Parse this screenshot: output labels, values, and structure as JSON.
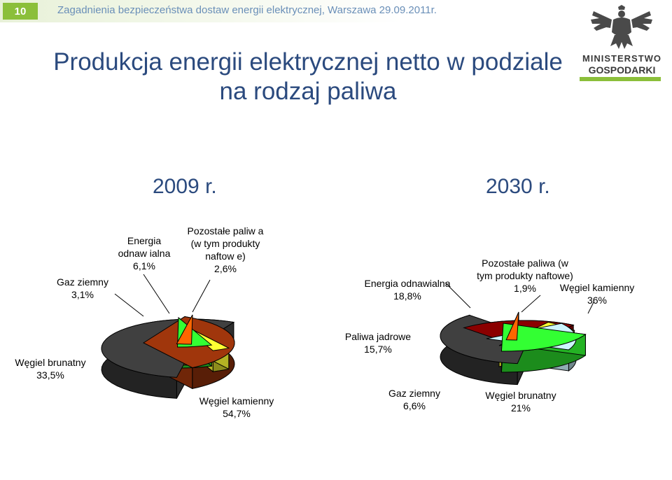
{
  "header": {
    "page_number": "10",
    "text": "Zagadnienia bezpieczeństwa dostaw energii elektrycznej, Warszawa 29.09.2011r.",
    "accent": "#8bbf3a",
    "text_color": "#6a8fb8"
  },
  "title": {
    "line1": "Produkcja energii elektrycznej netto w podziale",
    "line2": "na rodzaj paliwa"
  },
  "logo": {
    "line1": "MINISTERSTWO",
    "line2": "GOSPODARKI",
    "emblem": "eagle-emblem-icon"
  },
  "chart_data": [
    {
      "type": "pie",
      "title": "2009 r.",
      "slices": [
        {
          "name_lines": [
            "Węgiel kamienny"
          ],
          "pct": "54,7%",
          "value": 54.7,
          "color": "#404040"
        },
        {
          "name_lines": [
            "Węgiel brunatny"
          ],
          "pct": "33,5%",
          "value": 33.5,
          "color": "#a0360c"
        },
        {
          "name_lines": [
            "Gaz ziemny"
          ],
          "pct": "3,1%",
          "value": 3.1,
          "color": "#ffff33"
        },
        {
          "name_lines": [
            "Energia",
            "odnaw ialna"
          ],
          "pct": "6,1%",
          "value": 6.1,
          "color": "#33ff33"
        },
        {
          "name_lines": [
            "Pozostałe paliw a",
            "(w  tym produkty",
            "naftow e)"
          ],
          "pct": "2,6%",
          "value": 2.6,
          "color": "#ff6600"
        }
      ]
    },
    {
      "type": "pie",
      "title": "2030 r.",
      "slices": [
        {
          "name_lines": [
            "Węgiel kamienny"
          ],
          "pct": "36%",
          "value": 36,
          "color": "#404040"
        },
        {
          "name_lines": [
            "Węgiel brunatny"
          ],
          "pct": "21%",
          "value": 21,
          "color": "#8b0000"
        },
        {
          "name_lines": [
            "Gaz ziemny"
          ],
          "pct": "6,6%",
          "value": 6.6,
          "color": "#ffff33"
        },
        {
          "name_lines": [
            "Paliwa jadrowe"
          ],
          "pct": "15,7%",
          "value": 15.7,
          "color": "#ccf5ff"
        },
        {
          "name_lines": [
            "Energia odnawialna"
          ],
          "pct": "18,8%",
          "value": 18.8,
          "color": "#33ff33"
        },
        {
          "name_lines": [
            "Pozostałe paliwa (w",
            "tym produkty naftowe)"
          ],
          "pct": "1,9%",
          "value": 1.9,
          "color": "#ff6600"
        }
      ]
    }
  ]
}
